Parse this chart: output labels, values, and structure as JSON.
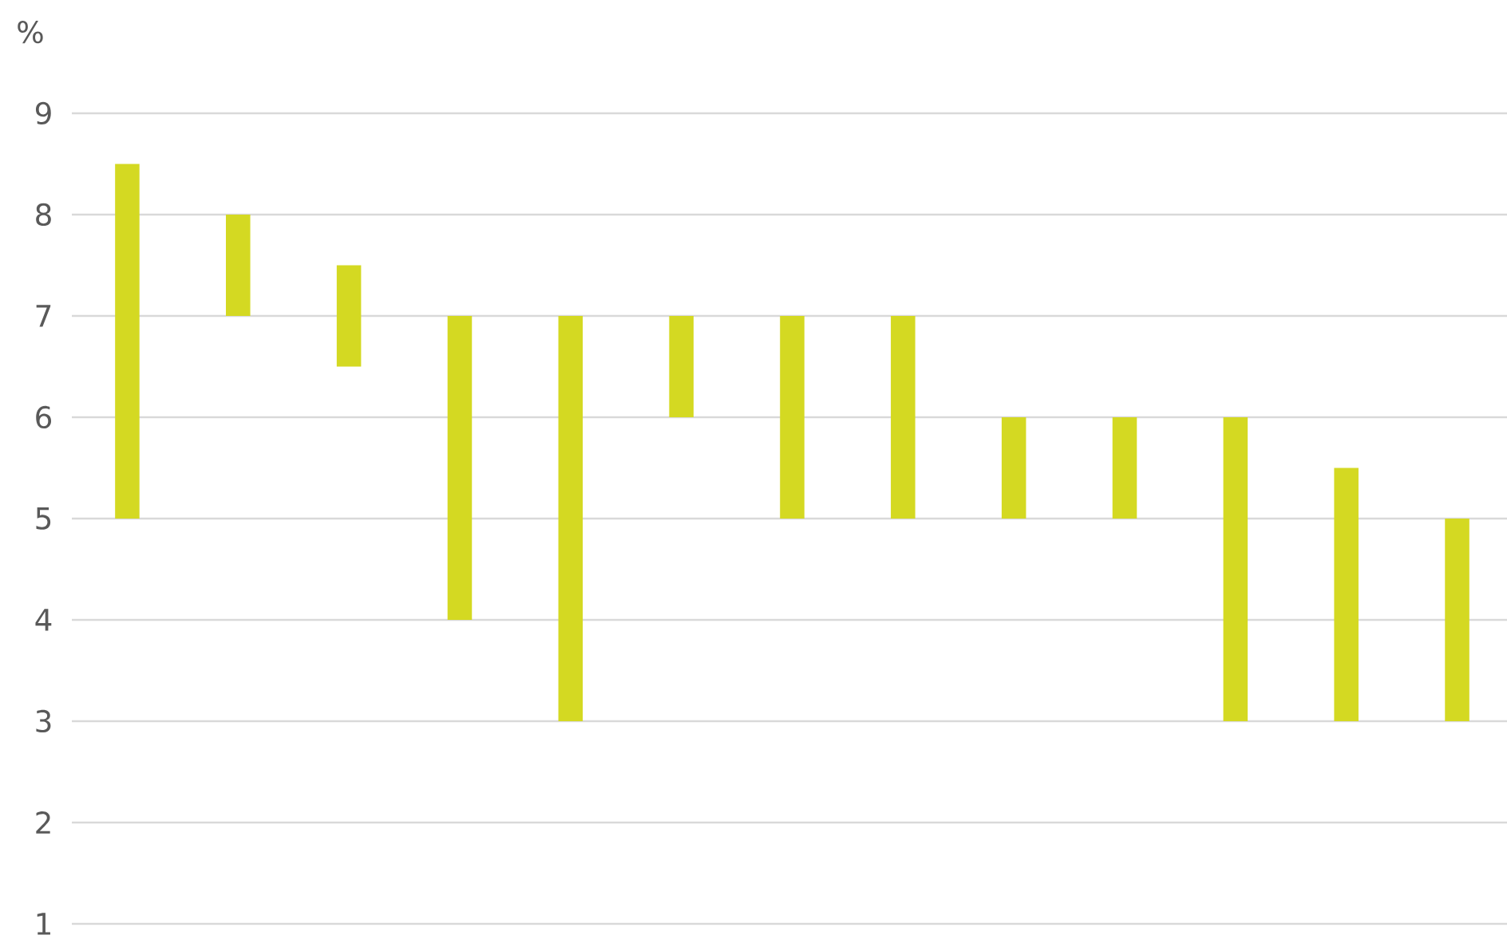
{
  "chart_data": {
    "type": "bar",
    "ylabel": "%",
    "categories": [
      null,
      null,
      null,
      null,
      null,
      null,
      null,
      null,
      null,
      null,
      null,
      null,
      null
    ],
    "base": [
      5,
      7,
      6.5,
      4,
      3,
      6,
      5,
      5,
      5,
      5,
      3,
      3,
      3
    ],
    "values": [
      3.5,
      1,
      1,
      3,
      4,
      1,
      2,
      2,
      1,
      1,
      3,
      2.5,
      2
    ],
    "color": "#d4d922",
    "ylim": [
      1,
      9
    ],
    "yticks": [
      1,
      2,
      3,
      4,
      5,
      6,
      7,
      8,
      9
    ],
    "grid": "y"
  }
}
